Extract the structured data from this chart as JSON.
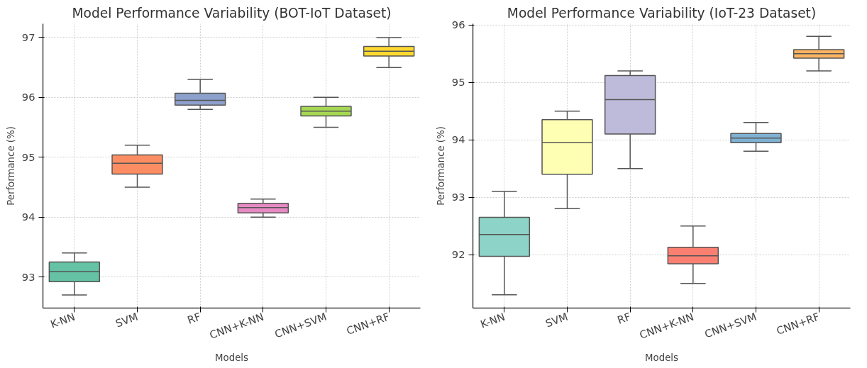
{
  "chart_data": [
    {
      "type": "box",
      "title": "Model Performance Variability (BOT-IoT Dataset)",
      "xlabel": "Models",
      "ylabel": "Performance (%)",
      "categories": [
        "K-NN",
        "SVM",
        "RF",
        "CNN+K-NN",
        "CNN+SVM",
        "CNN+RF"
      ],
      "colors": [
        "#66c2a5",
        "#fc8d62",
        "#8da0cb",
        "#e78ac3",
        "#a6d854",
        "#ffd92f"
      ],
      "boxes": [
        {
          "low": 92.7,
          "q1": 92.92,
          "median": 93.09,
          "q3": 93.25,
          "high": 93.4
        },
        {
          "low": 94.5,
          "q1": 94.72,
          "median": 94.9,
          "q3": 95.04,
          "high": 95.2
        },
        {
          "low": 95.8,
          "q1": 95.87,
          "median": 95.95,
          "q3": 96.07,
          "high": 96.3
        },
        {
          "low": 94.0,
          "q1": 94.07,
          "median": 94.16,
          "q3": 94.23,
          "high": 94.3
        },
        {
          "low": 95.5,
          "q1": 95.69,
          "median": 95.77,
          "q3": 95.85,
          "high": 96.0
        },
        {
          "low": 96.5,
          "q1": 96.69,
          "median": 96.77,
          "q3": 96.85,
          "high": 97.0
        }
      ],
      "ylim": [
        92.48,
        97.23
      ],
      "yticks": [
        93,
        94,
        95,
        96,
        97
      ],
      "grid": true
    },
    {
      "type": "box",
      "title": "Model Performance Variability (IoT-23 Dataset)",
      "xlabel": "Models",
      "ylabel": "Performance (%)",
      "categories": [
        "K-NN",
        "SVM",
        "RF",
        "CNN+K-NN",
        "CNN+SVM",
        "CNN+RF"
      ],
      "colors": [
        "#8dd3c7",
        "#ffffb3",
        "#bebada",
        "#fb8072",
        "#80b1d3",
        "#fdb462"
      ],
      "boxes": [
        {
          "low": 91.3,
          "q1": 91.97,
          "median": 92.35,
          "q3": 92.65,
          "high": 93.1
        },
        {
          "low": 92.8,
          "q1": 93.4,
          "median": 93.95,
          "q3": 94.35,
          "high": 94.5
        },
        {
          "low": 93.5,
          "q1": 94.1,
          "median": 94.7,
          "q3": 95.12,
          "high": 95.2
        },
        {
          "low": 91.5,
          "q1": 91.84,
          "median": 91.98,
          "q3": 92.13,
          "high": 92.5
        },
        {
          "low": 93.8,
          "q1": 93.95,
          "median": 94.03,
          "q3": 94.11,
          "high": 94.3
        },
        {
          "low": 95.2,
          "q1": 95.42,
          "median": 95.5,
          "q3": 95.57,
          "high": 95.8
        }
      ],
      "ylim": [
        91.07,
        96.02
      ],
      "yticks": [
        92,
        93,
        94,
        95,
        96
      ],
      "grid": true
    }
  ]
}
